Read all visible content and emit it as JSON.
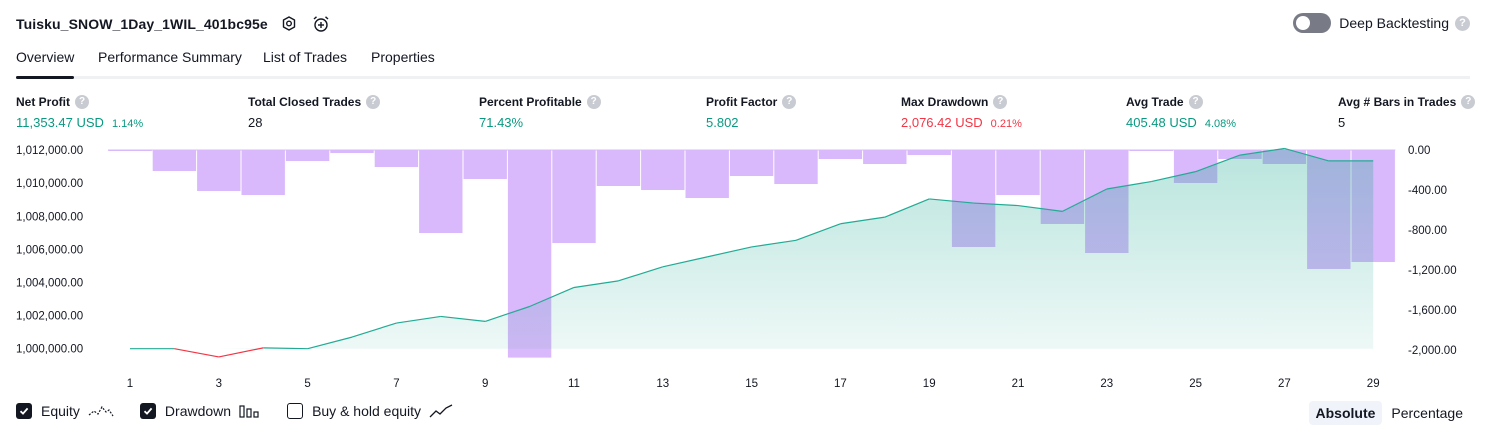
{
  "header": {
    "strategy_name": "Tuisku_SNOW_1Day_1WIL_401bc95e",
    "deep_backtesting_label": "Deep Backtesting",
    "help_glyph": "?",
    "deep_backtesting_enabled": false
  },
  "tabs": [
    {
      "label": "Overview",
      "active": true
    },
    {
      "label": "Performance Summary",
      "active": false
    },
    {
      "label": "List of Trades",
      "active": false
    },
    {
      "label": "Properties",
      "active": false
    }
  ],
  "metrics": {
    "net_profit": {
      "label": "Net Profit",
      "value": "11,353.47 USD",
      "pct": "1.14%"
    },
    "total_closed_trades": {
      "label": "Total Closed Trades",
      "value": "28"
    },
    "percent_profitable": {
      "label": "Percent Profitable",
      "value": "71.43%"
    },
    "profit_factor": {
      "label": "Profit Factor",
      "value": "5.802"
    },
    "max_drawdown": {
      "label": "Max Drawdown",
      "value": "2,076.42 USD",
      "pct": "0.21%"
    },
    "avg_trade": {
      "label": "Avg Trade",
      "value": "405.48 USD",
      "pct": "4.08%"
    },
    "avg_bars": {
      "label": "Avg # Bars in Trades",
      "value": "5"
    }
  },
  "colors": {
    "positive": "#089981",
    "negative": "#f23645",
    "equity_line": "#22ab94",
    "equity_fill": "#22ab94",
    "drawdown_bar": "#d9b8fb",
    "equity_negative_line": "#f23645"
  },
  "chart_data": {
    "type": "area",
    "x": [
      1,
      2,
      3,
      4,
      5,
      6,
      7,
      8,
      9,
      10,
      11,
      12,
      13,
      14,
      15,
      16,
      17,
      18,
      19,
      20,
      21,
      22,
      23,
      24,
      25,
      26,
      27,
      28,
      29
    ],
    "x_tick_labels": [
      "1",
      "3",
      "5",
      "7",
      "9",
      "11",
      "13",
      "15",
      "17",
      "19",
      "21",
      "23",
      "25",
      "27",
      "29"
    ],
    "left_axis": {
      "ticks": [
        1000000,
        1002000,
        1004000,
        1006000,
        1008000,
        1010000,
        1012000
      ],
      "tick_labels": [
        "1,000,000.00",
        "1,002,000.00",
        "1,004,000.00",
        "1,006,000.00",
        "1,008,000.00",
        "1,010,000.00",
        "1,012,000.00"
      ],
      "ylim": [
        999800,
        1012250
      ]
    },
    "right_axis": {
      "ticks": [
        0,
        -400,
        -800,
        -1200,
        -1600,
        -2000
      ],
      "tick_labels": [
        "0.00",
        "-400.00",
        "-800.00",
        "-1,200.00",
        "-1,600.00",
        "-2,000.00"
      ],
      "ylim": [
        -2000,
        0
      ]
    },
    "series": [
      {
        "name": "Equity",
        "axis": "left",
        "values": [
          1000000,
          1000000,
          999500,
          1000050,
          1000000,
          1000700,
          1001550,
          1001950,
          1001650,
          1002550,
          1003700,
          1004100,
          1004950,
          1005550,
          1006150,
          1006550,
          1007550,
          1007950,
          1009050,
          1008800,
          1008650,
          1008300,
          1009650,
          1010100,
          1010700,
          1011700,
          1012100,
          1011350,
          1011350
        ]
      },
      {
        "name": "Drawdown",
        "axis": "right",
        "type": "bar",
        "values": [
          -5,
          -210,
          -410,
          -450,
          -110,
          -30,
          -170,
          -830,
          -290,
          -2076,
          -930,
          -360,
          -400,
          -480,
          -260,
          -340,
          -90,
          -140,
          -50,
          -970,
          -450,
          -740,
          -1030,
          -5,
          -330,
          -90,
          -140,
          -1190,
          -1120
        ]
      }
    ],
    "grid": false,
    "legend_position": "bottom-left"
  },
  "legend": {
    "equity": {
      "label": "Equity",
      "checked": true
    },
    "drawdown": {
      "label": "Drawdown",
      "checked": true
    },
    "buy_hold": {
      "label": "Buy & hold equity",
      "checked": false
    }
  },
  "modes": [
    {
      "label": "Absolute",
      "selected": true
    },
    {
      "label": "Percentage",
      "selected": false
    }
  ]
}
